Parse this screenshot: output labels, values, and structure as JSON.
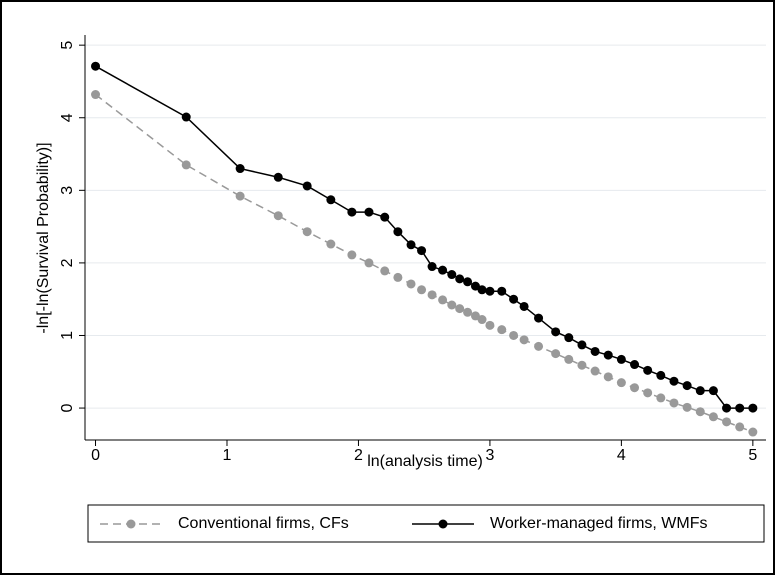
{
  "chart_data": {
    "type": "line",
    "x_label": "ln(analysis time)",
    "y_label": "-ln[-ln(Survival Probability)]",
    "x": [
      0,
      0.69,
      1.1,
      1.39,
      1.61,
      1.79,
      1.95,
      2.08,
      2.2,
      2.3,
      2.4,
      2.48,
      2.56,
      2.64,
      2.71,
      2.77,
      2.83,
      2.89,
      2.94,
      3.0,
      3.09,
      3.18,
      3.26,
      3.37,
      3.5,
      3.6,
      3.7,
      3.8,
      3.9,
      4.0,
      4.1,
      4.2,
      4.3,
      4.4,
      4.5,
      4.6,
      4.7,
      4.8,
      4.9,
      5.0
    ],
    "series": [
      {
        "name": "Conventional firms, CFs",
        "color": "#999999",
        "dashed": true,
        "values": [
          4.32,
          3.35,
          2.92,
          2.65,
          2.43,
          2.26,
          2.11,
          2.0,
          1.89,
          1.8,
          1.71,
          1.63,
          1.56,
          1.49,
          1.42,
          1.37,
          1.32,
          1.27,
          1.22,
          1.14,
          1.08,
          1.0,
          0.94,
          0.85,
          0.75,
          0.67,
          0.59,
          0.51,
          0.43,
          0.35,
          0.28,
          0.21,
          0.14,
          0.07,
          0.01,
          -0.05,
          -0.12,
          -0.19,
          -0.26,
          -0.33
        ]
      },
      {
        "name": "Worker-managed firms, WMFs",
        "color": "#000000",
        "dashed": false,
        "values": [
          4.71,
          4.01,
          3.3,
          3.18,
          3.06,
          2.87,
          2.7,
          2.7,
          2.63,
          2.43,
          2.25,
          2.17,
          1.95,
          1.9,
          1.84,
          1.78,
          1.74,
          1.68,
          1.63,
          1.61,
          1.61,
          1.5,
          1.4,
          1.24,
          1.05,
          0.97,
          0.87,
          0.78,
          0.73,
          0.67,
          0.6,
          0.52,
          0.45,
          0.37,
          0.31,
          0.24,
          0.24,
          0.0,
          0.0,
          0.0
        ]
      }
    ],
    "xlim": [
      -0.08,
      5.1
    ],
    "ylim": [
      -0.44,
      5.14
    ],
    "xticks": [
      0,
      1,
      2,
      3,
      4,
      5
    ],
    "yticks": [
      0,
      1,
      2,
      3,
      4,
      5
    ],
    "grid": true,
    "legend": "bottom"
  }
}
